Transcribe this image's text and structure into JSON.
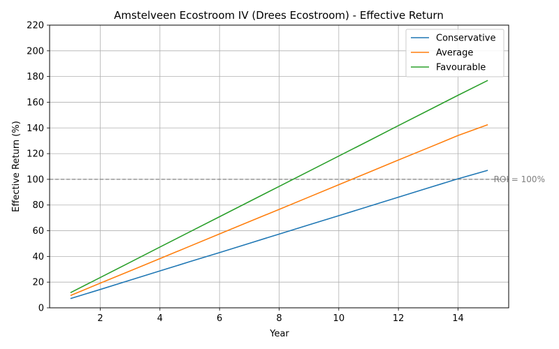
{
  "chart_data": {
    "type": "line",
    "title": "Amstelveen Ecostroom IV (Drees Ecostroom) - Effective Return",
    "xlabel": "Year",
    "ylabel": "Effective Return (%)",
    "xlim": [
      0.3,
      15.7
    ],
    "ylim": [
      0,
      220
    ],
    "xticks": [
      2,
      4,
      6,
      8,
      10,
      12,
      14
    ],
    "yticks": [
      0,
      20,
      40,
      60,
      80,
      100,
      120,
      140,
      160,
      180,
      200,
      220
    ],
    "grid": true,
    "legend_position": "top-right",
    "x": [
      1,
      2,
      3,
      4,
      5,
      6,
      7,
      8,
      9,
      10,
      11,
      12,
      13,
      14,
      15
    ],
    "series": [
      {
        "name": "Conservative",
        "color": "#1f77b4",
        "values": [
          7.2,
          14.3,
          21.5,
          28.7,
          35.9,
          43.0,
          50.2,
          57.4,
          64.6,
          71.7,
          78.9,
          86.1,
          93.3,
          100.4,
          107.0
        ]
      },
      {
        "name": "Average",
        "color": "#ff7f0e",
        "values": [
          9.6,
          19.2,
          28.7,
          38.3,
          47.9,
          57.5,
          67.1,
          76.6,
          86.2,
          95.8,
          105.4,
          115.0,
          124.5,
          134.1,
          142.5
        ]
      },
      {
        "name": "Favourable",
        "color": "#2ca02c",
        "values": [
          11.8,
          23.6,
          35.4,
          47.3,
          59.1,
          70.9,
          82.7,
          94.5,
          106.3,
          118.1,
          129.9,
          141.8,
          153.6,
          165.4,
          177.0
        ]
      }
    ],
    "reference_line": {
      "y": 100,
      "label": "ROI = 100%",
      "color": "#808080"
    }
  }
}
